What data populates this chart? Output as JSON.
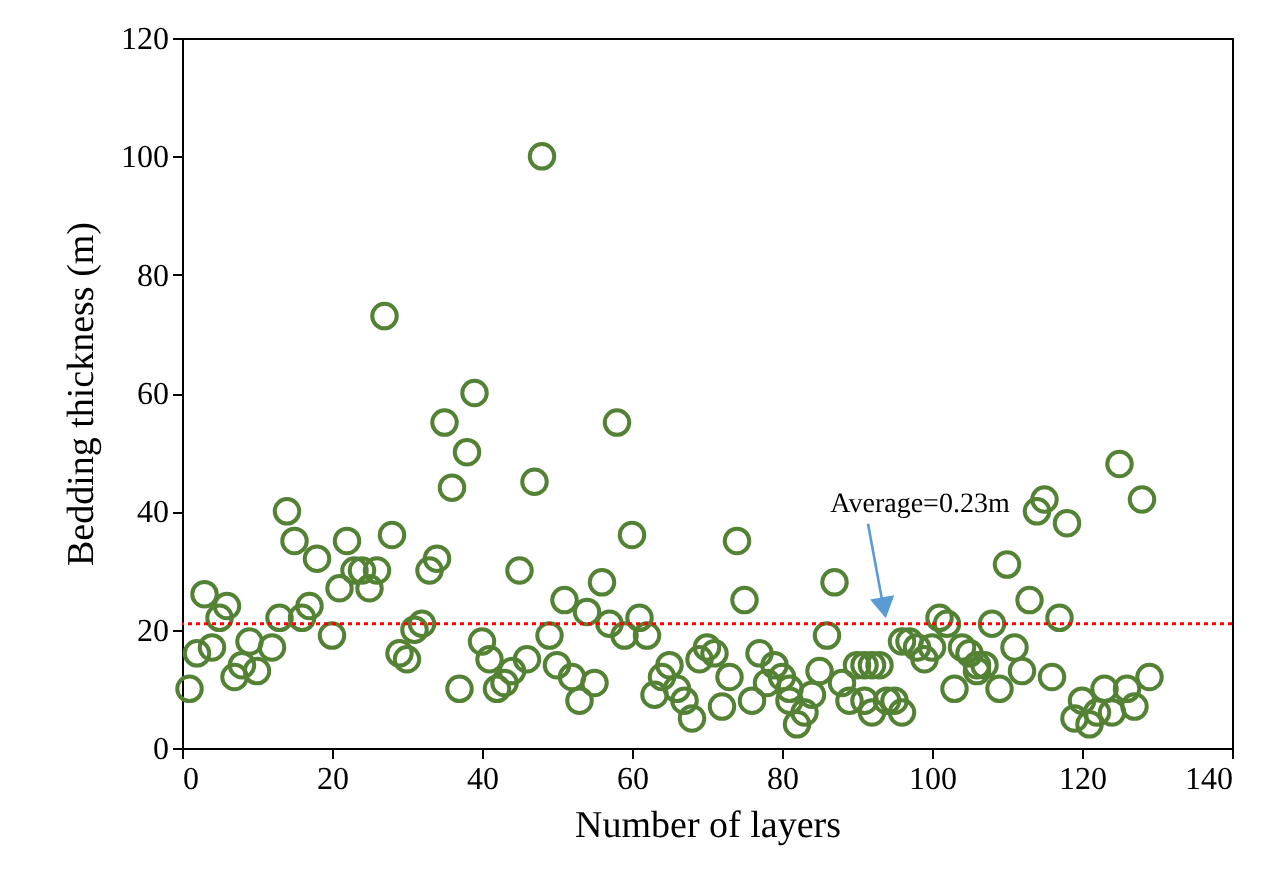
{
  "chart_data": {
    "type": "scatter",
    "xlabel": "Number of layers",
    "ylabel": "Bedding thickness (m)",
    "xlim": [
      0,
      140
    ],
    "xticks": [
      0,
      20,
      40,
      60,
      80,
      100,
      120,
      140
    ],
    "ylim": [
      0,
      120
    ],
    "yticks": [
      0,
      20,
      40,
      60,
      80,
      100,
      120
    ],
    "grid": false,
    "marker": "circle",
    "series": [
      {
        "color": "#548235",
        "x": [
          1,
          2,
          3,
          4,
          5,
          6,
          7,
          8,
          9,
          10,
          12,
          13,
          14,
          15,
          16,
          17,
          18,
          20,
          21,
          22,
          23,
          24,
          25,
          26,
          27,
          28,
          29,
          30,
          31,
          32,
          33,
          34,
          35,
          36,
          37,
          38,
          39,
          40,
          41,
          42,
          43,
          44,
          45,
          46,
          47,
          48,
          49,
          50,
          51,
          52,
          53,
          54,
          55,
          56,
          57,
          58,
          59,
          60,
          61,
          62,
          63,
          64,
          65,
          66,
          67,
          68,
          69,
          70,
          71,
          72,
          73,
          74,
          75,
          76,
          77,
          78,
          79,
          80,
          81,
          81,
          82,
          83,
          84,
          85,
          86,
          87,
          88,
          89,
          90,
          91,
          91,
          92,
          92,
          93,
          94,
          95,
          96,
          96,
          97,
          98,
          99,
          100,
          101,
          102,
          103,
          104,
          105,
          106,
          106,
          107,
          108,
          109,
          110,
          111,
          112,
          113,
          114,
          115,
          116,
          117,
          118,
          119,
          120,
          121,
          122,
          123,
          124,
          125,
          126,
          127,
          128,
          129
        ],
        "values": [
          10,
          16,
          26,
          17,
          22,
          24,
          12,
          14,
          18,
          13,
          17,
          22,
          40,
          35,
          22,
          24,
          32,
          19,
          27,
          35,
          30,
          30,
          27,
          30,
          73,
          36,
          16,
          15,
          20,
          21,
          30,
          32,
          55,
          44,
          10,
          50,
          60,
          18,
          15,
          10,
          11,
          13,
          30,
          15,
          45,
          100,
          19,
          14,
          25,
          12,
          8,
          23,
          11,
          28,
          21,
          55,
          19,
          36,
          22,
          19,
          9,
          12,
          14,
          10,
          8,
          5,
          15,
          17,
          16,
          7,
          12,
          35,
          25,
          8,
          16,
          11,
          14,
          12,
          10,
          8,
          4,
          6,
          9,
          13,
          19,
          28,
          11,
          8,
          14,
          14,
          8,
          14,
          6,
          14,
          8,
          8,
          18,
          6,
          18,
          17,
          15,
          17,
          22,
          21,
          10,
          17,
          16,
          14,
          13,
          14,
          21,
          10,
          31,
          17,
          13,
          25,
          40,
          42,
          12,
          22,
          38,
          5,
          8,
          4,
          6,
          10,
          6,
          48,
          10,
          7,
          42,
          12
        ]
      }
    ],
    "ref_lines": [
      {
        "axis": "y",
        "value": 21,
        "color": "#ff0000",
        "line_style": "dotted"
      }
    ],
    "annotations": [
      "Average=0.23m"
    ]
  }
}
